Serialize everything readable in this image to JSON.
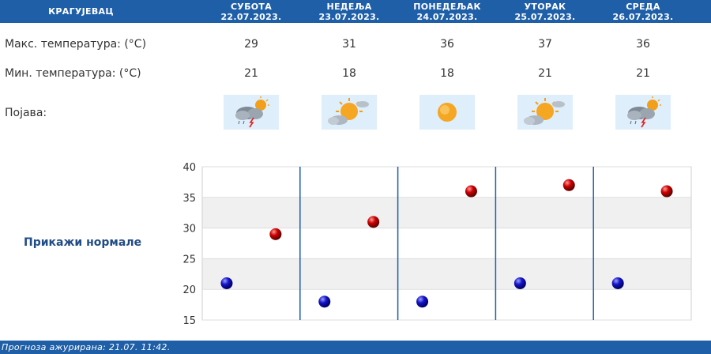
{
  "header": {
    "city": "КРАГУЈЕВАЦ"
  },
  "days": [
    {
      "name": "СУБОТА",
      "date": "22.07.2023.",
      "max": "29",
      "min": "21",
      "icon": "thunderstorm-cloud-sun-icon"
    },
    {
      "name": "НЕДЕЉА",
      "date": "23.07.2023.",
      "max": "31",
      "min": "18",
      "icon": "sun-behind-cloud-icon"
    },
    {
      "name": "ПОНЕДЕЉАК",
      "date": "24.07.2023.",
      "max": "36",
      "min": "18",
      "icon": "sun-icon"
    },
    {
      "name": "УТОРАК",
      "date": "25.07.2023.",
      "max": "37",
      "min": "21",
      "icon": "sun-behind-cloud-icon"
    },
    {
      "name": "СРЕДА",
      "date": "26.07.2023.",
      "max": "36",
      "min": "21",
      "icon": "thunderstorm-cloud-sun-icon"
    }
  ],
  "rows": {
    "max_label": "Макс. температура: (°C)",
    "min_label": "Мин. температура: (°C)",
    "phenomenon_label": "Појава:"
  },
  "norms_link": "Прикажи нормале",
  "chart_data": {
    "type": "scatter",
    "categories": [
      "22.07.2023.",
      "23.07.2023.",
      "24.07.2023.",
      "25.07.2023.",
      "26.07.2023."
    ],
    "series": [
      {
        "values": [
          21,
          18,
          18,
          21,
          21
        ],
        "color": "#0a0ab4"
      },
      {
        "values": [
          29,
          31,
          36,
          37,
          36
        ],
        "color": "#c00000"
      }
    ],
    "ylim": [
      15,
      40
    ],
    "yticks": [
      "15",
      "20",
      "25",
      "30",
      "35",
      "40"
    ],
    "grid": true
  },
  "footer": {
    "text": "Прогноза ажурирана:  21.07. 11:42."
  },
  "colors": {
    "header_bg": "#1f5fa8",
    "min_marker": "#0a0ab4",
    "max_marker": "#c00000",
    "band": "#f0f0f0"
  }
}
